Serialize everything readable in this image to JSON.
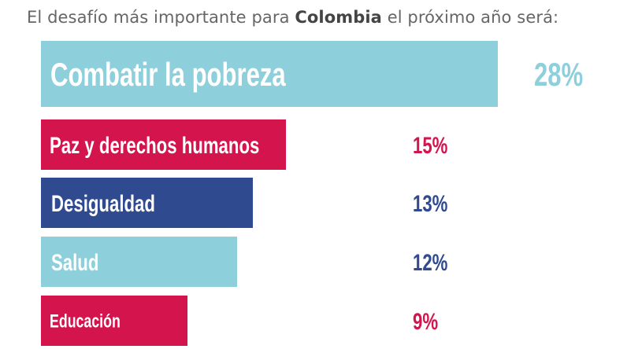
{
  "title": {
    "prefix": "El desafío más importante para ",
    "bold": "Colombia",
    "suffix": " el próximo año será:"
  },
  "chart_data": {
    "type": "bar",
    "orientation": "horizontal",
    "title": "El desafío más importante para Colombia el próximo año será:",
    "categories": [
      "Combatir la pobreza",
      "Paz y derechos humanos",
      "Desigualdad",
      "Salud",
      "Educación"
    ],
    "values": [
      28,
      15,
      13,
      12,
      9
    ],
    "value_labels": [
      "28%",
      "15%",
      "13%",
      "12%",
      "9%"
    ],
    "unit": "%",
    "colors": [
      "#8ecfdc",
      "#d4144c",
      "#2f4a8f",
      "#8ecfdc",
      "#d4144c"
    ],
    "label_colors": [
      "#8ecfdc",
      "#d4144c",
      "#2f4a8f",
      "#2f4a8f",
      "#d4144c"
    ],
    "xlim": [
      0,
      28
    ],
    "grid": false,
    "legend": "none"
  }
}
